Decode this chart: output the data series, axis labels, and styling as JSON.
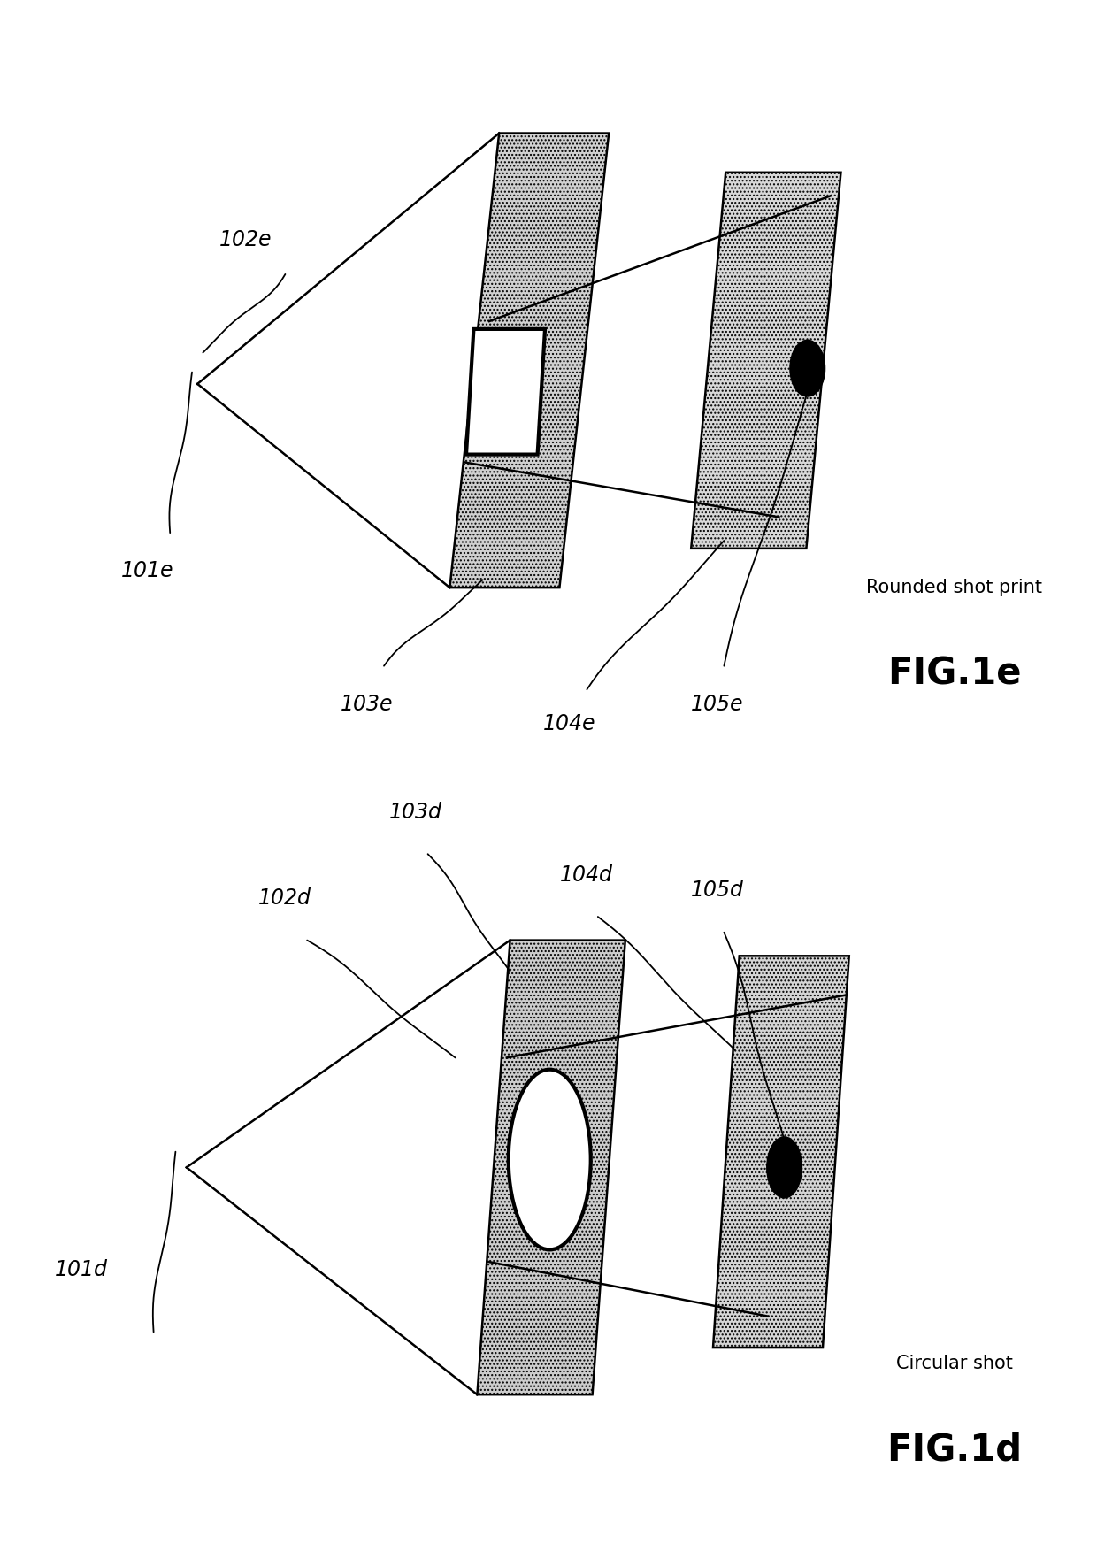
{
  "bg_color": "#ffffff",
  "fig_width": 12.4,
  "fig_height": 17.71,
  "top_panel": {
    "label": "FIG.1e",
    "sublabel": "Rounded shot print",
    "items": {
      "beam_label": "101e",
      "aperture_label": "102e",
      "mask_label": "103e",
      "resist_label": "104e",
      "print_label": "105e"
    }
  },
  "bottom_panel": {
    "label": "FIG.1d",
    "sublabel": "Circular shot",
    "items": {
      "beam_label": "101d",
      "aperture_label": "102d",
      "mask_label": "103d",
      "resist_label": "104d",
      "print_label": "105d"
    }
  },
  "text_color": "#000000",
  "fontsize_label": 17,
  "fontsize_fig": 30,
  "fontsize_sublabel": 15
}
